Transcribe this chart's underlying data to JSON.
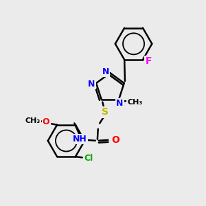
{
  "bg_color": "#ebebeb",
  "bond_color": "#000000",
  "bond_width": 1.8,
  "atom_colors": {
    "N": "#0000ff",
    "O": "#ff0000",
    "S": "#bbbb00",
    "F": "#ff00ff",
    "Cl": "#00aa00",
    "C": "#000000",
    "H": "#555555"
  },
  "font_size": 9,
  "fig_size": [
    3.0,
    3.0
  ],
  "dpi": 100,
  "xlim": [
    0,
    10
  ],
  "ylim": [
    0,
    10
  ]
}
